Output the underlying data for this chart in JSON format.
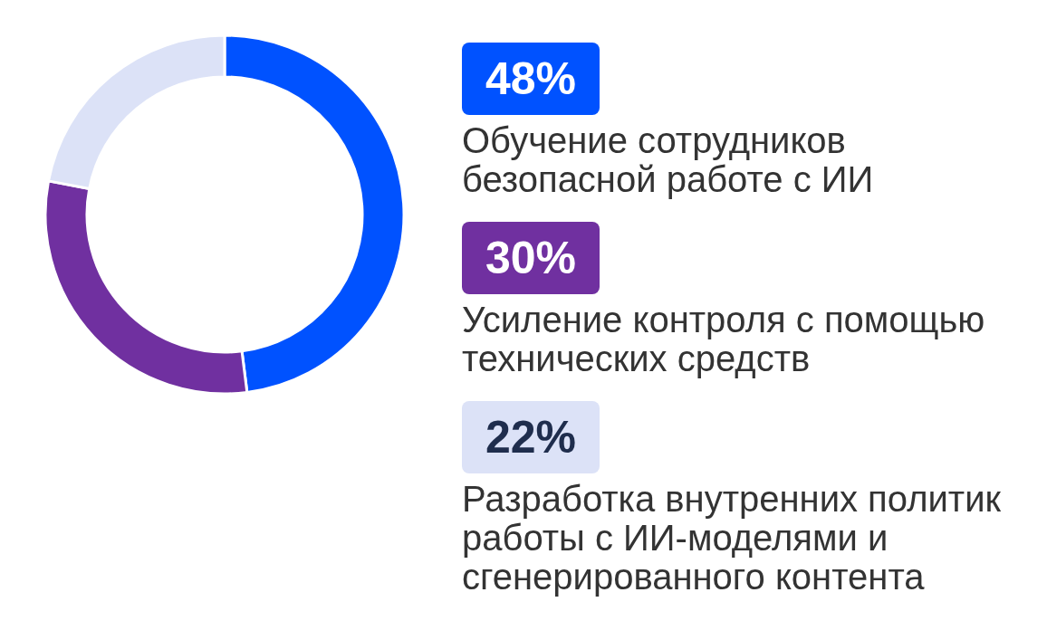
{
  "chart_data": {
    "type": "donut",
    "categories": [
      "Обучение сотрудников безопасной работе с ИИ",
      "Усиление контроля с помощью технических средств",
      "Разработка внутренних политик работы с ИИ-моделями и сгенерированного контента"
    ],
    "values": [
      48,
      30,
      22
    ],
    "colors": [
      "#0052ff",
      "#7030a0",
      "#dce2f7"
    ],
    "value_labels": [
      "48%",
      "30%",
      "22%"
    ],
    "legend": "right"
  }
}
